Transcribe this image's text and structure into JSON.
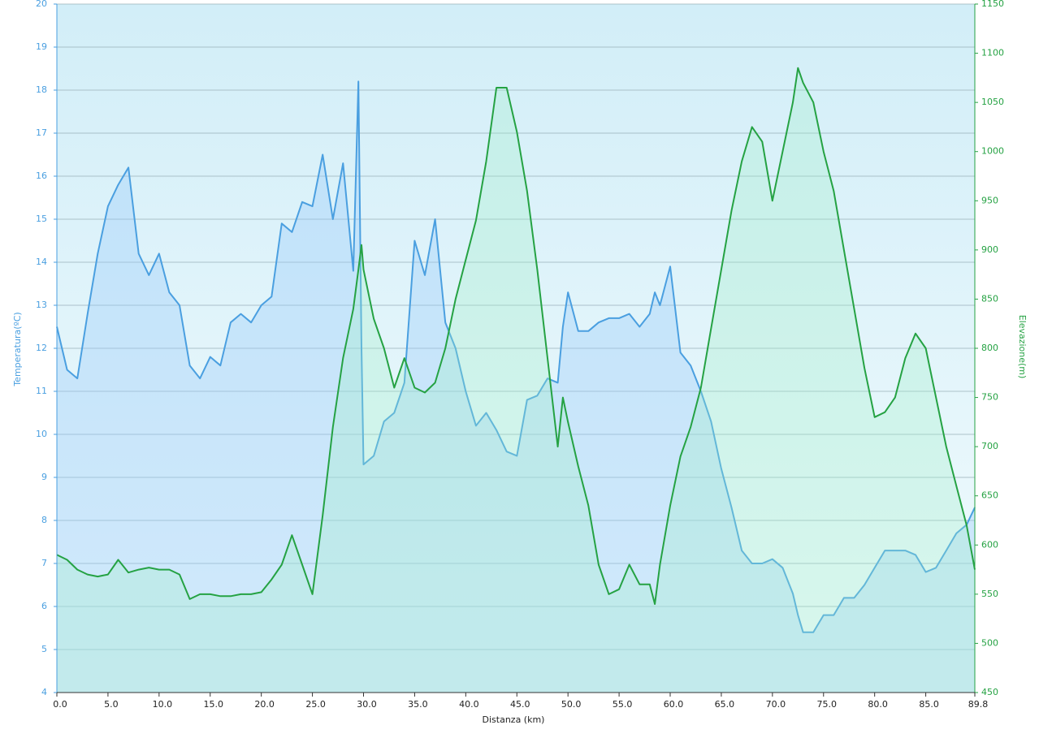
{
  "chart_data": {
    "type": "line",
    "xlabel": "Distanza  (km)",
    "ylabel": "Temperatura(ºC)",
    "y2label": "Elevazione(m)",
    "x": [
      0,
      1,
      2,
      3,
      4,
      5,
      6,
      7,
      8,
      9,
      10,
      11,
      12,
      13,
      14,
      15,
      16,
      17,
      18,
      19,
      20,
      21,
      22,
      23,
      24,
      25,
      26,
      27,
      28,
      29,
      29.5,
      29.8,
      30,
      31,
      32,
      33,
      34,
      35,
      36,
      37,
      38,
      39,
      40,
      41,
      42,
      43,
      44,
      45,
      46,
      47,
      48,
      49,
      49.5,
      50,
      51,
      52,
      53,
      54,
      55,
      56,
      57,
      58,
      58.5,
      59,
      60,
      61,
      62,
      63,
      64,
      65,
      66,
      67,
      68,
      69,
      70,
      71,
      72,
      72.5,
      73,
      74,
      75,
      76,
      77,
      78,
      79,
      80,
      81,
      82,
      83,
      84,
      85,
      86,
      87,
      88,
      89,
      89.8
    ],
    "series": [
      {
        "name": "Temperatura",
        "color": "#4a9fe0",
        "fill": "rgba(150,200,250,0.35)",
        "values": [
          12.5,
          11.5,
          11.3,
          12.8,
          14.2,
          15.3,
          15.8,
          16.2,
          14.2,
          13.7,
          14.2,
          13.3,
          13.0,
          11.6,
          11.3,
          11.8,
          11.6,
          12.6,
          12.8,
          12.6,
          13.0,
          13.2,
          14.9,
          14.7,
          15.4,
          15.3,
          16.5,
          15.0,
          16.3,
          13.8,
          18.2,
          12.0,
          9.3,
          9.5,
          10.3,
          10.5,
          11.2,
          14.5,
          13.7,
          15.0,
          12.6,
          12.0,
          11.0,
          10.2,
          10.5,
          10.1,
          9.6,
          9.5,
          10.8,
          10.9,
          11.3,
          11.2,
          12.5,
          13.3,
          12.4,
          12.4,
          12.6,
          12.7,
          12.7,
          12.8,
          12.5,
          12.8,
          13.3,
          13.0,
          13.9,
          11.9,
          11.6,
          11.0,
          10.3,
          9.2,
          8.3,
          7.3,
          7.0,
          7.0,
          7.1,
          6.9,
          6.3,
          5.8,
          5.4,
          5.4,
          5.8,
          5.8,
          6.2,
          6.2,
          6.5,
          6.9,
          7.3,
          7.3,
          7.3,
          7.2,
          6.8,
          6.9,
          7.3,
          7.7,
          7.9,
          8.3
        ]
      },
      {
        "name": "Elevazione",
        "color": "#25a243",
        "fill": "rgba(160,240,200,0.3)",
        "axis": "y2",
        "values": [
          590,
          585,
          575,
          570,
          568,
          570,
          585,
          572,
          575,
          577,
          575,
          575,
          570,
          545,
          550,
          550,
          548,
          548,
          550,
          550,
          552,
          565,
          580,
          610,
          580,
          550,
          630,
          720,
          790,
          840,
          880,
          905,
          880,
          830,
          800,
          760,
          790,
          760,
          755,
          765,
          800,
          850,
          890,
          930,
          990,
          1065,
          1065,
          1020,
          960,
          880,
          790,
          700,
          750,
          725,
          680,
          640,
          580,
          550,
          555,
          580,
          560,
          560,
          540,
          580,
          640,
          690,
          720,
          760,
          820,
          880,
          940,
          990,
          1025,
          1010,
          950,
          1000,
          1050,
          1085,
          1070,
          1050,
          1000,
          960,
          900,
          840,
          780,
          730,
          735,
          750,
          790,
          815,
          800,
          750,
          700,
          660,
          620,
          575
        ]
      }
    ],
    "xlim": [
      0,
      89.8
    ],
    "xticks": [
      {
        "value": 0,
        "label": "0.0"
      },
      {
        "value": 5,
        "label": "5.0"
      },
      {
        "value": 10,
        "label": "10.0"
      },
      {
        "value": 15,
        "label": "15.0"
      },
      {
        "value": 20,
        "label": "20.0"
      },
      {
        "value": 25,
        "label": "25.0"
      },
      {
        "value": 30,
        "label": "30.0"
      },
      {
        "value": 35,
        "label": "35.0"
      },
      {
        "value": 40,
        "label": "40.0"
      },
      {
        "value": 45,
        "label": "45.0"
      },
      {
        "value": 50,
        "label": "50.0"
      },
      {
        "value": 55,
        "label": "55.0"
      },
      {
        "value": 60,
        "label": "60.0"
      },
      {
        "value": 65,
        "label": "65.0"
      },
      {
        "value": 70,
        "label": "70.0"
      },
      {
        "value": 75,
        "label": "75.0"
      },
      {
        "value": 80,
        "label": "80.0"
      },
      {
        "value": 85,
        "label": "85.0"
      },
      89.8
    ],
    "ylim": [
      4,
      20
    ],
    "yticks": [
      4,
      5,
      6,
      7,
      8,
      9,
      10,
      11,
      12,
      13,
      14,
      15,
      16,
      17,
      18,
      19,
      20
    ],
    "y2lim": [
      450,
      1150
    ],
    "y2ticks": [
      450,
      500,
      550,
      600,
      650,
      700,
      750,
      800,
      850,
      900,
      950,
      1000,
      1050,
      1100,
      1150
    ],
    "grid": true
  }
}
